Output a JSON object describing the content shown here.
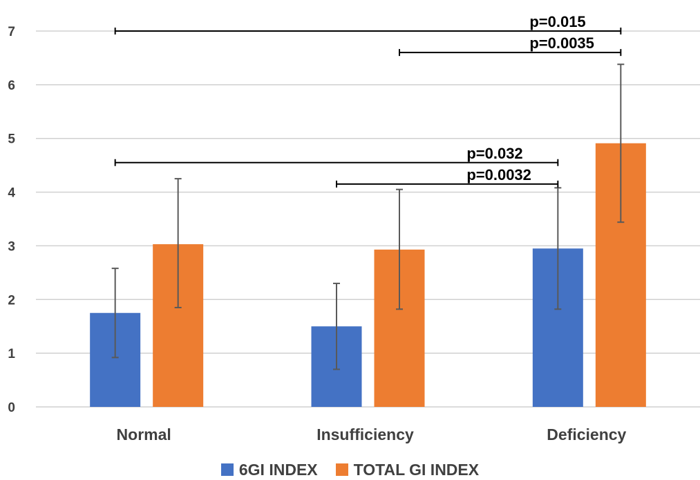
{
  "chart_data": {
    "type": "bar",
    "categories": [
      "Normal",
      "Insufficiency",
      "Deficiency"
    ],
    "series": [
      {
        "name": "6GI INDEX",
        "color": "#4472C4",
        "values": [
          1.75,
          1.5,
          2.95
        ],
        "error_low": [
          0.92,
          0.7,
          1.82
        ],
        "error_high": [
          2.58,
          2.3,
          4.08
        ]
      },
      {
        "name": "TOTAL GI INDEX",
        "color": "#ED7D31",
        "values": [
          3.03,
          2.93,
          4.91
        ],
        "error_low": [
          1.85,
          1.82,
          3.44
        ],
        "error_high": [
          4.25,
          4.05,
          6.38
        ]
      }
    ],
    "ylim": [
      0,
      7
    ],
    "yticks": [
      "0",
      "1",
      "2",
      "3",
      "4",
      "5",
      "6",
      "7"
    ],
    "grid": true,
    "legend_position": "bottom",
    "significance": [
      {
        "label": "p=0.015",
        "from": "Normal",
        "to": "Deficiency",
        "from_series": "6GI INDEX",
        "to_series": "TOTAL GI INDEX",
        "y": 7.0
      },
      {
        "label": "p=0.0035",
        "from": "Insufficiency",
        "to": "Deficiency",
        "from_series": "TOTAL GI INDEX",
        "to_series": "TOTAL GI INDEX",
        "y": 6.6
      },
      {
        "label": "p=0.032",
        "from": "Normal",
        "to": "Deficiency",
        "from_series": "6GI INDEX",
        "to_series": "6GI INDEX",
        "y": 4.55
      },
      {
        "label": "p=0.0032",
        "from": "Insufficiency",
        "to": "Deficiency",
        "from_series": "6GI INDEX",
        "to_series": "6GI INDEX",
        "y": 4.15
      }
    ],
    "gridColor": "#d0d0d0",
    "errorColor": "#595959"
  }
}
